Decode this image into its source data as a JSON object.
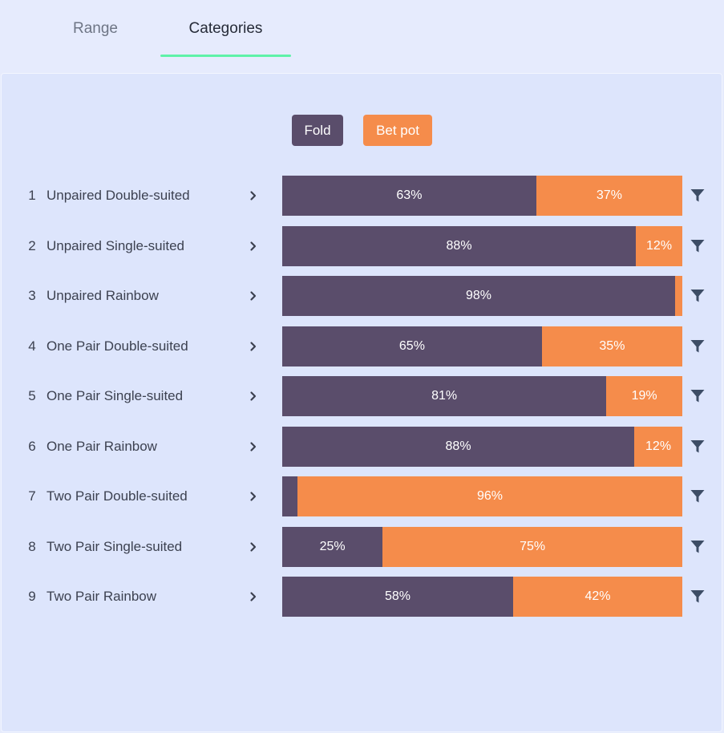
{
  "tabs": [
    {
      "label": "Range",
      "active": false
    },
    {
      "label": "Categories",
      "active": true
    }
  ],
  "colors": {
    "fold": "#5a4d6b",
    "bet": "#f58c4b",
    "accent": "#5ef2a8"
  },
  "legend": {
    "fold_label": "Fold",
    "bet_label": "Bet pot"
  },
  "rows": [
    {
      "index": "1",
      "label": "Unpaired Double-suited",
      "fold": 63.5,
      "bet": 36.5,
      "fold_text": "63%",
      "bet_text": "37%"
    },
    {
      "index": "2",
      "label": "Unpaired Single-suited",
      "fold": 88.4,
      "bet": 11.6,
      "fold_text": "88%",
      "bet_text": "12%"
    },
    {
      "index": "3",
      "label": "Unpaired Rainbow",
      "fold": 98.2,
      "bet": 1.8,
      "fold_text": "98%",
      "bet_text": ""
    },
    {
      "index": "4",
      "label": "One Pair Double-suited",
      "fold": 64.9,
      "bet": 35.1,
      "fold_text": "65%",
      "bet_text": "35%"
    },
    {
      "index": "5",
      "label": "One Pair Single-suited",
      "fold": 81.0,
      "bet": 19.0,
      "fold_text": "81%",
      "bet_text": "19%"
    },
    {
      "index": "6",
      "label": "One Pair Rainbow",
      "fold": 88.0,
      "bet": 12.0,
      "fold_text": "88%",
      "bet_text": "12%"
    },
    {
      "index": "7",
      "label": "Two Pair Double-suited",
      "fold": 3.8,
      "bet": 96.2,
      "fold_text": "",
      "bet_text": "96%"
    },
    {
      "index": "8",
      "label": "Two Pair Single-suited",
      "fold": 25.1,
      "bet": 74.9,
      "fold_text": "25%",
      "bet_text": "75%"
    },
    {
      "index": "9",
      "label": "Two Pair Rainbow",
      "fold": 57.7,
      "bet": 42.3,
      "fold_text": "58%",
      "bet_text": "42%"
    }
  ],
  "icons": {
    "row_chevron": "chevron-right-icon",
    "row_filter": "filter-icon"
  }
}
